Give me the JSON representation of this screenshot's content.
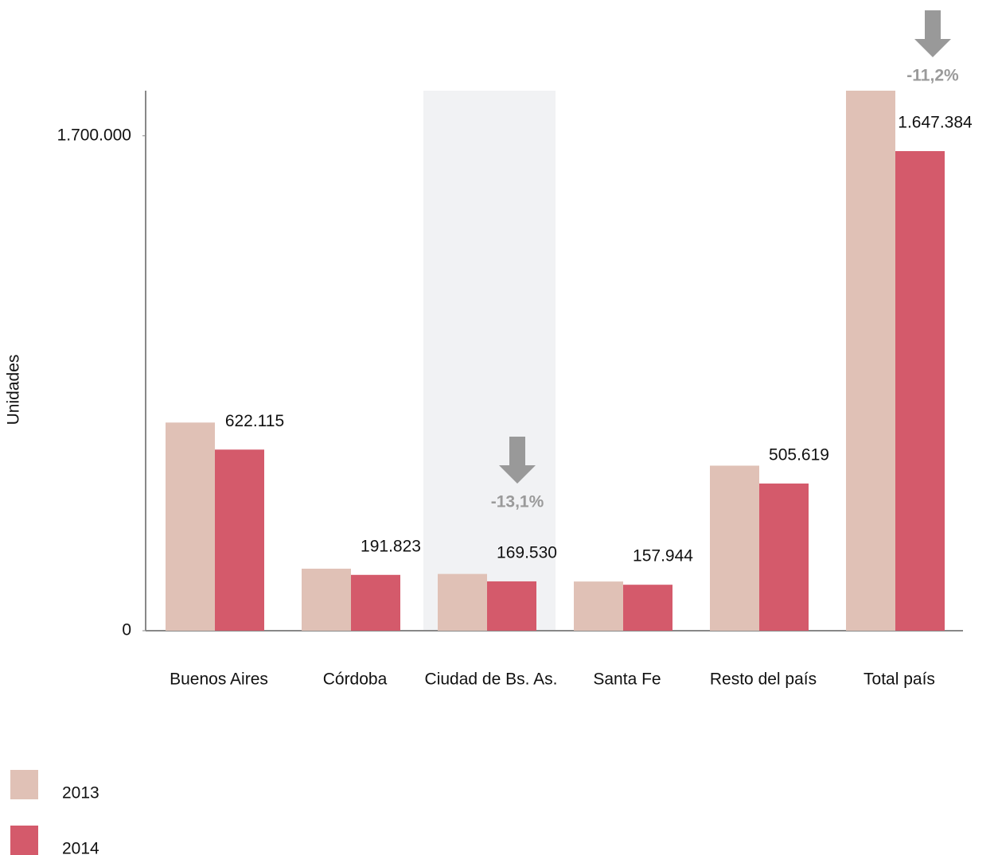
{
  "chart_data": {
    "type": "bar",
    "y_label": "Unidades",
    "categories": [
      "Buenos Aires",
      "Córdoba",
      "Ciudad de Bs. As.",
      "Santa Fe",
      "Resto del país",
      "Total país"
    ],
    "series": [
      {
        "name": "2013",
        "color": "#e0c1b6",
        "values": [
          715000,
          213000,
          195000,
          169000,
          567000,
          1855000
        ]
      },
      {
        "name": "2014",
        "color": "#d45a6b",
        "values": [
          622115,
          191823,
          169530,
          157944,
          505619,
          1647384
        ],
        "value_labels": [
          "622.115",
          "191.823",
          "169.530",
          "157.944",
          "505.619",
          "1.647.384"
        ]
      }
    ],
    "ylim": [
      0,
      1855000
    ],
    "yticks": [
      0,
      {
        "value": 1700000,
        "label": "1.700.000"
      }
    ],
    "annotations": [
      "-13,1%",
      "-11,2%"
    ]
  }
}
